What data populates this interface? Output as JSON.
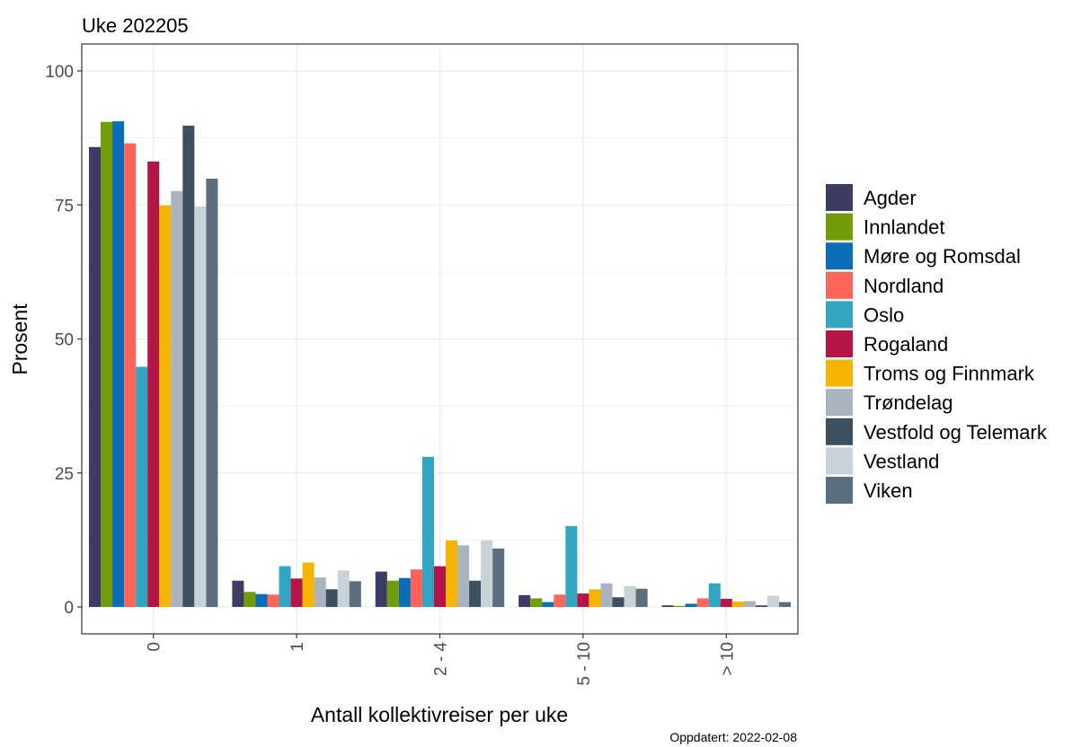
{
  "chart_data": {
    "type": "bar",
    "title": "Uke 202205",
    "xlabel": "Antall kollektivreiser per uke",
    "ylabel": "Prosent",
    "caption": "Oppdatert: 2022-02-08",
    "categories": [
      "0",
      "1",
      "2 - 4",
      "5 - 10",
      "> 10"
    ],
    "ylim": [
      -5,
      105
    ],
    "yticks": [
      0,
      25,
      50,
      75,
      100
    ],
    "grid": true,
    "legend_position": "right",
    "series": [
      {
        "name": "Agder",
        "color": "#3c3c64",
        "values": [
          85.8,
          4.9,
          6.6,
          2.2,
          0.3
        ]
      },
      {
        "name": "Innlandet",
        "color": "#739b0a",
        "values": [
          90.5,
          2.8,
          4.9,
          1.6,
          0.2
        ]
      },
      {
        "name": "Møre og Romsdal",
        "color": "#0a6eb9",
        "values": [
          90.6,
          2.4,
          5.4,
          0.9,
          0.6
        ]
      },
      {
        "name": "Nordland",
        "color": "#ff6459",
        "values": [
          86.5,
          2.3,
          7.0,
          2.3,
          1.6
        ]
      },
      {
        "name": "Oslo",
        "color": "#32a5c3",
        "values": [
          44.8,
          7.6,
          28.0,
          15.1,
          4.4
        ]
      },
      {
        "name": "Rogaland",
        "color": "#b41446",
        "values": [
          83.1,
          5.3,
          7.6,
          2.5,
          1.5
        ]
      },
      {
        "name": "Troms og Finnmark",
        "color": "#f5b400",
        "values": [
          74.9,
          8.3,
          12.4,
          3.3,
          1.0
        ]
      },
      {
        "name": "Trøndelag",
        "color": "#aab4be",
        "values": [
          77.6,
          5.5,
          11.5,
          4.4,
          1.1
        ]
      },
      {
        "name": "Vestfold og Telemark",
        "color": "#3c505f",
        "values": [
          89.8,
          3.3,
          4.9,
          1.8,
          0.3
        ]
      },
      {
        "name": "Vestland",
        "color": "#c8d2d7",
        "values": [
          74.7,
          6.8,
          12.4,
          3.9,
          2.1
        ]
      },
      {
        "name": "Viken",
        "color": "#5a6e7d",
        "values": [
          79.9,
          4.8,
          10.9,
          3.4,
          0.9
        ]
      }
    ]
  }
}
